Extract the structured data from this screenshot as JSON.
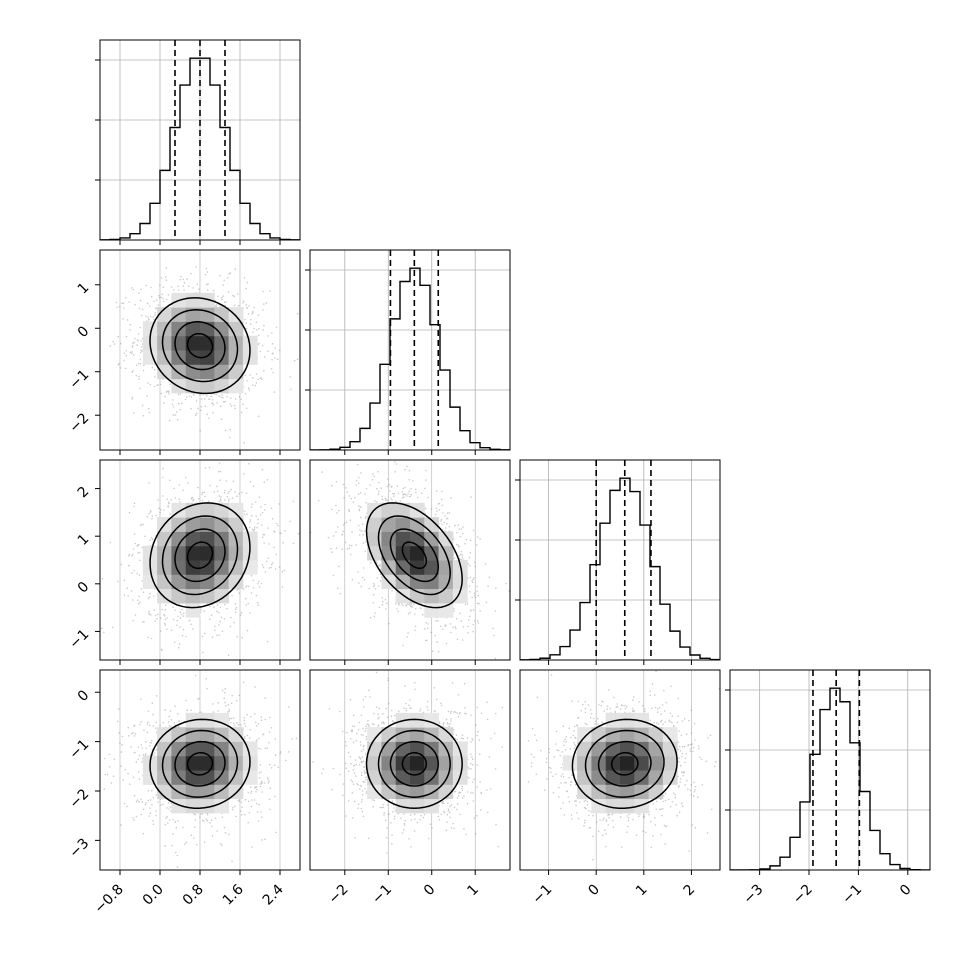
{
  "chart_data": {
    "type": "corner",
    "parameters": [
      "",
      "",
      "",
      ""
    ],
    "quantiles": [
      0.16,
      0.5,
      0.84
    ],
    "params": [
      {
        "mean": 0.8,
        "sd": 0.5,
        "range": [
          -1.2,
          2.8
        ],
        "quantile_values": [
          0.3,
          0.8,
          1.3
        ],
        "ticks": [
          -0.8,
          0.0,
          0.8,
          1.6,
          2.4
        ],
        "tick_labels": [
          "−0.8",
          "0.0",
          "0.8",
          "1.6",
          "2.4"
        ]
      },
      {
        "mean": -0.4,
        "sd": 0.55,
        "range": [
          -2.8,
          1.8
        ],
        "quantile_values": [
          -0.95,
          -0.4,
          0.15
        ],
        "ticks": [
          -2,
          -1,
          0,
          1
        ],
        "tick_labels": [
          "−2",
          "−1",
          "0",
          "1"
        ]
      },
      {
        "mean": 0.6,
        "sd": 0.55,
        "range": [
          -1.6,
          2.6
        ],
        "quantile_values": [
          0.0,
          0.6,
          1.15
        ],
        "ticks": [
          -1,
          0,
          1,
          2
        ],
        "tick_labels": [
          "−1",
          "0",
          "1",
          "2"
        ]
      },
      {
        "mean": -1.45,
        "sd": 0.45,
        "range": [
          -3.6,
          0.45
        ],
        "quantile_values": [
          -1.92,
          -1.45,
          -0.98
        ],
        "ticks": [
          -3,
          -2,
          -1,
          0
        ],
        "tick_labels": [
          "−3",
          "−2",
          "−1",
          "0"
        ]
      }
    ],
    "left_axis_ticks": [
      null,
      {
        "ticks": [
          1,
          0,
          -1,
          -2
        ],
        "tick_labels": [
          "1",
          "0",
          "−1",
          "−2"
        ]
      },
      {
        "ticks": [
          2,
          1,
          0,
          -1
        ],
        "tick_labels": [
          "2",
          "1",
          "0",
          "−1"
        ]
      },
      {
        "ticks": [
          0,
          -1,
          -2,
          -3
        ],
        "tick_labels": [
          "0",
          "−1",
          "−2",
          "−3"
        ]
      }
    ],
    "correlations": {
      "1-0": -0.1,
      "2-0": 0.15,
      "2-1": -0.45,
      "3-0": 0.05,
      "3-1": 0.0,
      "3-2": 0.05
    },
    "grid": true,
    "histogram_bins": 20,
    "colors": {
      "lines": "#000000",
      "scatter": "#8c8c8c",
      "grid": "#b0b0b0"
    }
  }
}
